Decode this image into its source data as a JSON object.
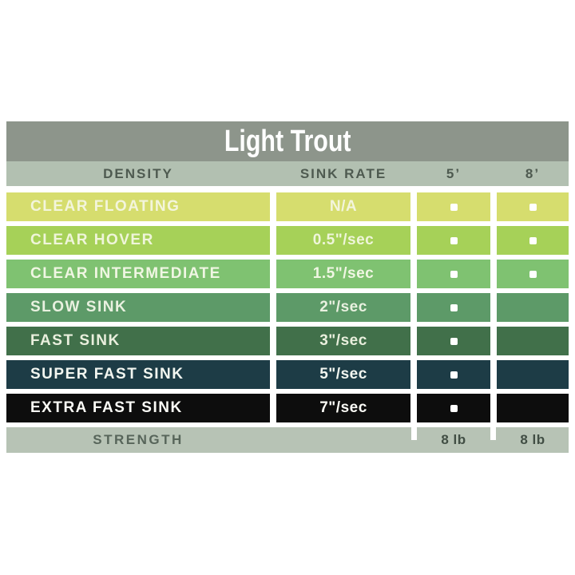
{
  "chart_data": {
    "type": "table",
    "title": "Light Trout",
    "columns": [
      "DENSITY",
      "SINK RATE",
      "5’",
      "8’"
    ],
    "rows": [
      {
        "density": "CLEAR FLOATING",
        "sink_rate": "N/A",
        "available_5ft": true,
        "available_8ft": true
      },
      {
        "density": "CLEAR HOVER",
        "sink_rate": "0.5\"/sec",
        "available_5ft": true,
        "available_8ft": true
      },
      {
        "density": "CLEAR INTERMEDIATE",
        "sink_rate": "1.5\"/sec",
        "available_5ft": true,
        "available_8ft": true
      },
      {
        "density": "SLOW SINK",
        "sink_rate": "2\"/sec",
        "available_5ft": true,
        "available_8ft": false
      },
      {
        "density": "FAST SINK",
        "sink_rate": "3\"/sec",
        "available_5ft": true,
        "available_8ft": false
      },
      {
        "density": "SUPER FAST SINK",
        "sink_rate": "5\"/sec",
        "available_5ft": true,
        "available_8ft": false
      },
      {
        "density": "EXTRA FAST SINK",
        "sink_rate": "7\"/sec",
        "available_5ft": true,
        "available_8ft": false
      }
    ],
    "footer": {
      "label": "STRENGTH",
      "strength_5ft": "8 lb",
      "strength_8ft": "8 lb"
    }
  },
  "colors": {
    "title_band": "#8d958b",
    "header_band": "#b2c0b1",
    "footer_band": "#b7c3b5",
    "header_text": "#4e5a50",
    "footer_label_text": "#57655a",
    "footer_value_text": "#414e44",
    "marker": "#ffffff",
    "row_colors": [
      "#d6dd6e",
      "#a6d158",
      "#7fc271",
      "#5d9a68",
      "#41704a",
      "#1d3c46",
      "#0d0d0d"
    ],
    "row_text_colors": [
      "#f3f5dc",
      "#eff5da",
      "#f0f6e3",
      "#e9f1e0",
      "#e9efdd",
      "#f2f6f0",
      "#fbfbf6"
    ]
  }
}
